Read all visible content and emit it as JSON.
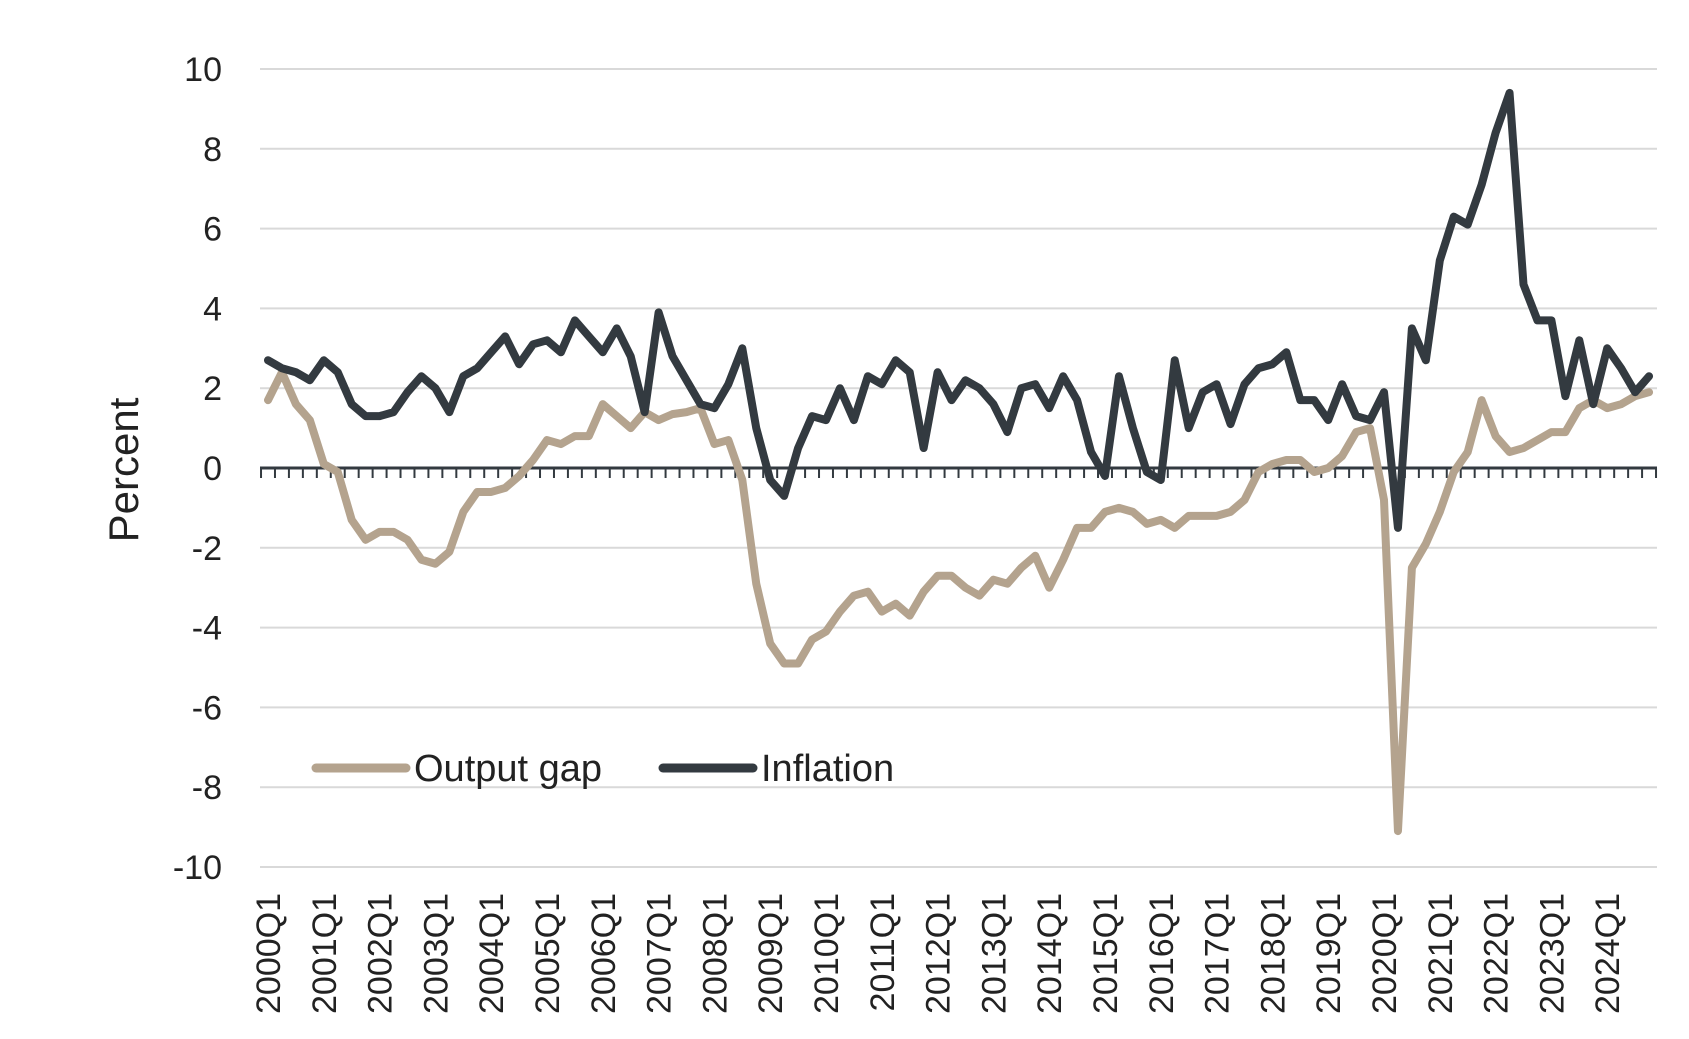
{
  "chart_data": {
    "type": "line",
    "title": "",
    "xlabel": "",
    "ylabel": "Percent",
    "ylim": [
      -10,
      10
    ],
    "yticks": [
      "-10",
      "-8",
      "-6",
      "-4",
      "-2",
      "0",
      "2",
      "4",
      "6",
      "8",
      "10"
    ],
    "grid": true,
    "legend_position": "bottom-left",
    "x_tick_labels": [
      "2000Q1",
      "2001Q1",
      "2002Q1",
      "2003Q1",
      "2004Q1",
      "2005Q1",
      "2006Q1",
      "2007Q1",
      "2008Q1",
      "2009Q1",
      "2010Q1",
      "2011Q1",
      "2012Q1",
      "2013Q1",
      "2014Q1",
      "2015Q1",
      "2016Q1",
      "2017Q1",
      "2018Q1",
      "2019Q1",
      "2020Q1",
      "2021Q1",
      "2022Q1",
      "2023Q1",
      "2024Q1"
    ],
    "x": [
      "2000Q1",
      "2000Q2",
      "2000Q3",
      "2000Q4",
      "2001Q1",
      "2001Q2",
      "2001Q3",
      "2001Q4",
      "2002Q1",
      "2002Q2",
      "2002Q3",
      "2002Q4",
      "2003Q1",
      "2003Q2",
      "2003Q3",
      "2003Q4",
      "2004Q1",
      "2004Q2",
      "2004Q3",
      "2004Q4",
      "2005Q1",
      "2005Q2",
      "2005Q3",
      "2005Q4",
      "2006Q1",
      "2006Q2",
      "2006Q3",
      "2006Q4",
      "2007Q1",
      "2007Q2",
      "2007Q3",
      "2007Q4",
      "2008Q1",
      "2008Q2",
      "2008Q3",
      "2008Q4",
      "2009Q1",
      "2009Q2",
      "2009Q3",
      "2009Q4",
      "2010Q1",
      "2010Q2",
      "2010Q3",
      "2010Q4",
      "2011Q1",
      "2011Q2",
      "2011Q3",
      "2011Q4",
      "2012Q1",
      "2012Q2",
      "2012Q3",
      "2012Q4",
      "2013Q1",
      "2013Q2",
      "2013Q3",
      "2013Q4",
      "2014Q1",
      "2014Q2",
      "2014Q3",
      "2014Q4",
      "2015Q1",
      "2015Q2",
      "2015Q3",
      "2015Q4",
      "2016Q1",
      "2016Q2",
      "2016Q3",
      "2016Q4",
      "2017Q1",
      "2017Q2",
      "2017Q3",
      "2017Q4",
      "2018Q1",
      "2018Q2",
      "2018Q3",
      "2018Q4",
      "2019Q1",
      "2019Q2",
      "2019Q3",
      "2019Q4",
      "2020Q1",
      "2020Q2",
      "2020Q3",
      "2020Q4",
      "2021Q1",
      "2021Q2",
      "2021Q3",
      "2021Q4",
      "2022Q1",
      "2022Q2",
      "2022Q3",
      "2022Q4",
      "2023Q1",
      "2023Q2",
      "2023Q3",
      "2023Q4",
      "2024Q1",
      "2024Q2",
      "2024Q3",
      "2024Q4"
    ],
    "series": [
      {
        "name": "Output gap",
        "color": "#b4a38e",
        "values": [
          1.7,
          2.4,
          1.6,
          1.2,
          0.1,
          -0.1,
          -1.3,
          -1.8,
          -1.6,
          -1.6,
          -1.8,
          -2.3,
          -2.4,
          -2.1,
          -1.1,
          -0.6,
          -0.6,
          -0.5,
          -0.2,
          0.2,
          0.7,
          0.6,
          0.8,
          0.8,
          1.6,
          1.3,
          1.0,
          1.4,
          1.2,
          1.35,
          1.4,
          1.5,
          0.6,
          0.7,
          -0.3,
          -2.9,
          -4.4,
          -4.9,
          -4.9,
          -4.3,
          -4.1,
          -3.6,
          -3.2,
          -3.1,
          -3.6,
          -3.4,
          -3.7,
          -3.1,
          -2.7,
          -2.7,
          -3.0,
          -3.2,
          -2.8,
          -2.9,
          -2.5,
          -2.2,
          -3.0,
          -2.3,
          -1.5,
          -1.5,
          -1.1,
          -1.0,
          -1.1,
          -1.4,
          -1.3,
          -1.5,
          -1.2,
          -1.2,
          -1.2,
          -1.1,
          -0.8,
          -0.1,
          0.1,
          0.2,
          0.2,
          -0.1,
          0.0,
          0.3,
          0.9,
          1.0,
          -0.8,
          -9.1,
          -2.5,
          -1.9,
          -1.1,
          -0.1,
          0.4,
          1.7,
          0.8,
          0.4,
          0.5,
          0.7,
          0.9,
          0.9,
          1.5,
          1.7,
          1.5,
          1.6,
          1.8,
          1.9
        ]
      },
      {
        "name": "Inflation",
        "color": "#333a40",
        "values": [
          2.7,
          2.5,
          2.4,
          2.2,
          2.7,
          2.4,
          1.6,
          1.3,
          1.3,
          1.4,
          1.9,
          2.3,
          2.0,
          1.4,
          2.3,
          2.5,
          2.9,
          3.3,
          2.6,
          3.1,
          3.2,
          2.9,
          3.7,
          3.3,
          2.9,
          3.5,
          2.8,
          1.4,
          3.9,
          2.8,
          2.2,
          1.6,
          1.5,
          2.1,
          3.0,
          1.0,
          -0.3,
          -0.7,
          0.5,
          1.3,
          1.2,
          2.0,
          1.2,
          2.3,
          2.1,
          2.7,
          2.4,
          0.5,
          2.4,
          1.7,
          2.2,
          2.0,
          1.6,
          0.9,
          2.0,
          2.1,
          1.5,
          2.3,
          1.7,
          0.4,
          -0.2,
          2.3,
          1.0,
          -0.1,
          -0.3,
          2.7,
          1.0,
          1.9,
          2.1,
          1.1,
          2.1,
          2.5,
          2.6,
          2.9,
          1.7,
          1.7,
          1.2,
          2.1,
          1.3,
          1.2,
          1.9,
          -1.5,
          3.5,
          2.7,
          5.2,
          6.3,
          6.1,
          7.1,
          8.4,
          9.4,
          4.6,
          3.7,
          3.7,
          1.8,
          3.2,
          1.6,
          3.0,
          2.5,
          1.9,
          2.3
        ]
      }
    ]
  }
}
